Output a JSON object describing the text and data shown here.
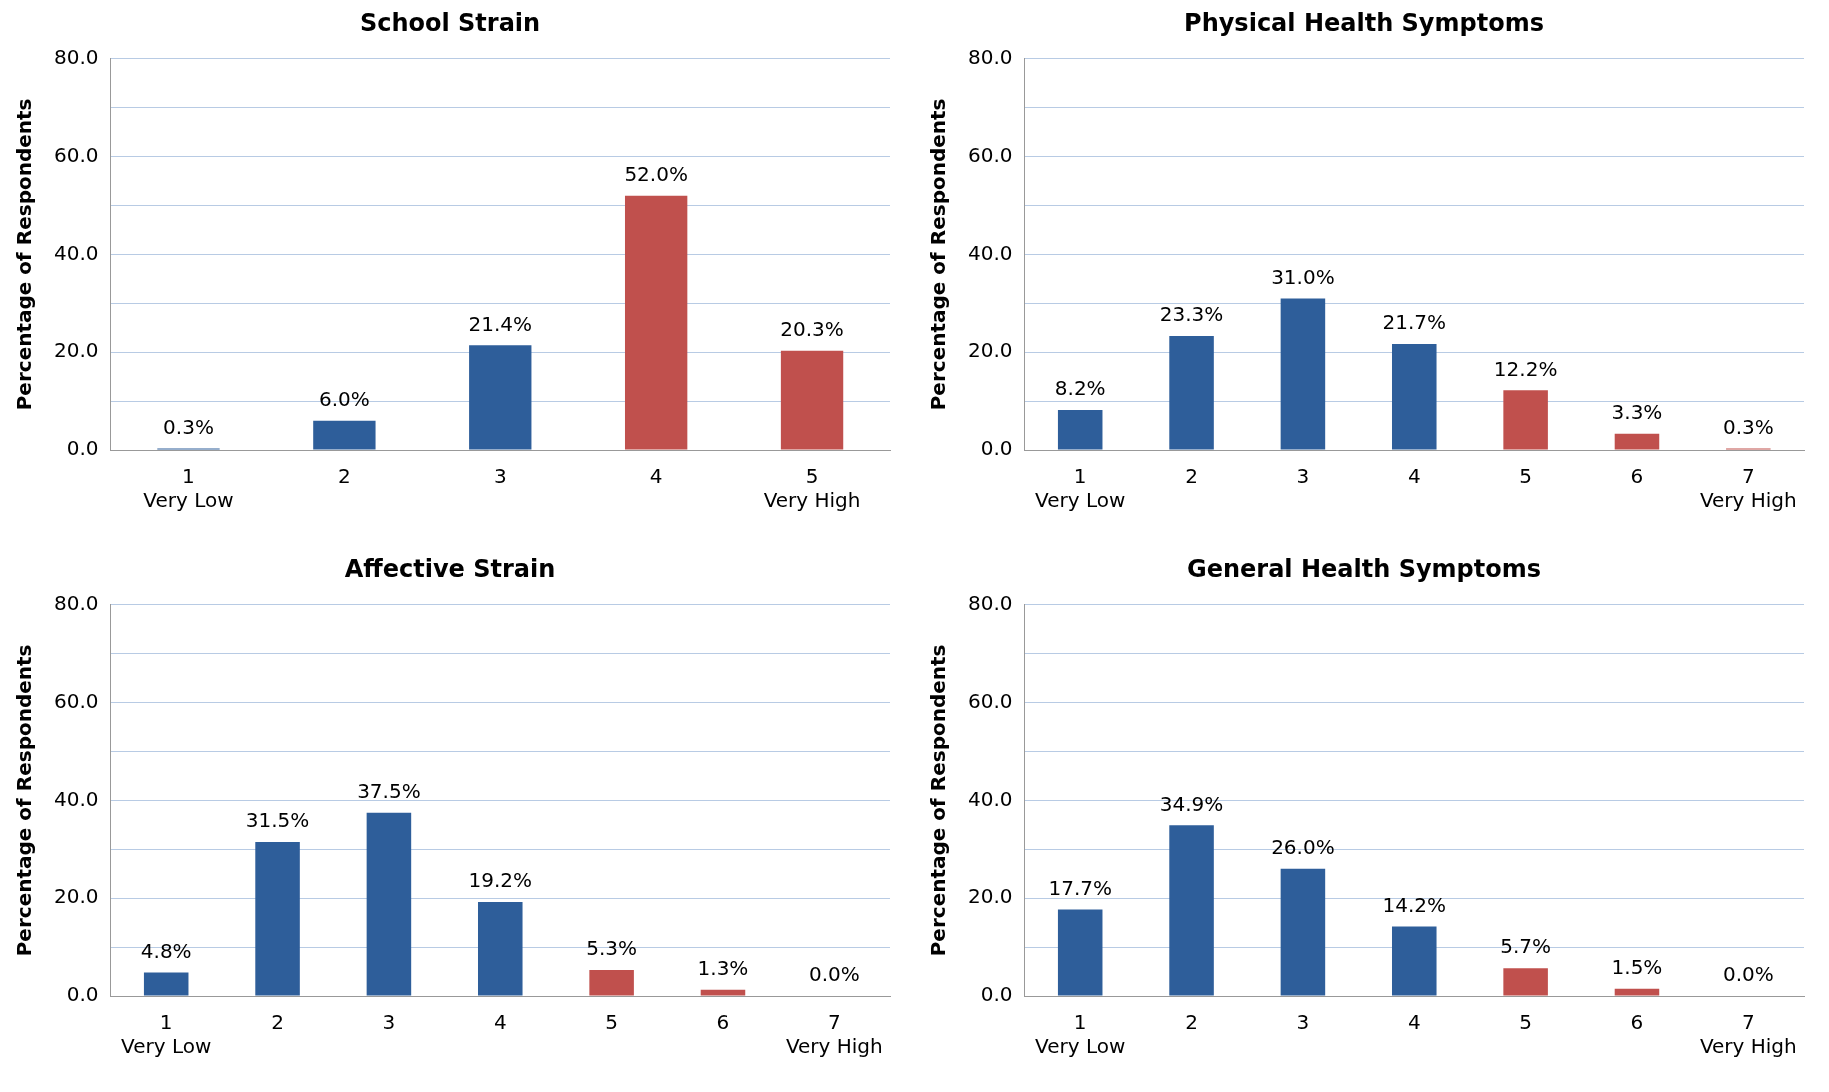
{
  "chart_data": [
    {
      "type": "bar",
      "title": "School Strain",
      "ylabel": "Percentage of Respondents",
      "categories": [
        "1\nVery Low",
        "2",
        "3",
        "4",
        "5\nVery High"
      ],
      "values": [
        0.3,
        6.0,
        21.4,
        52.0,
        20.3
      ],
      "colors": [
        "#2e5e9a",
        "#2e5e9a",
        "#2e5e9a",
        "#c0504d",
        "#c0504d"
      ],
      "value_labels": [
        "0.3%",
        "6.0%",
        "21.4%",
        "52.0%",
        "20.3%"
      ],
      "ylim": [
        0,
        80
      ],
      "yticks": [
        {
          "value": 0,
          "label": "0.0"
        },
        {
          "value": 10,
          "label": null
        },
        {
          "value": 20,
          "label": "20.0"
        },
        {
          "value": 30,
          "label": null
        },
        {
          "value": 40,
          "label": "40.0"
        },
        {
          "value": 50,
          "label": null
        },
        {
          "value": 60,
          "label": "60.0"
        },
        {
          "value": 70,
          "label": null
        },
        {
          "value": 80,
          "label": "80.0"
        }
      ],
      "grid": "y",
      "legend": false
    },
    {
      "type": "bar",
      "title": "Physical Health Symptoms",
      "ylabel": "Percentage of Respondents",
      "categories": [
        "1\nVery Low",
        "2",
        "3",
        "4",
        "5",
        "6",
        "7\nVery High"
      ],
      "values": [
        8.2,
        23.3,
        31.0,
        21.7,
        12.2,
        3.3,
        0.3
      ],
      "colors": [
        "#2e5e9a",
        "#2e5e9a",
        "#2e5e9a",
        "#2e5e9a",
        "#c0504d",
        "#c0504d",
        "#c0504d"
      ],
      "value_labels": [
        "8.2%",
        "23.3%",
        "31.0%",
        "21.7%",
        "12.2%",
        "3.3%",
        "0.3%"
      ],
      "ylim": [
        0,
        80
      ],
      "yticks": [
        {
          "value": 0,
          "label": "0.0"
        },
        {
          "value": 10,
          "label": null
        },
        {
          "value": 20,
          "label": "20.0"
        },
        {
          "value": 30,
          "label": null
        },
        {
          "value": 40,
          "label": "40.0"
        },
        {
          "value": 50,
          "label": null
        },
        {
          "value": 60,
          "label": "60.0"
        },
        {
          "value": 70,
          "label": null
        },
        {
          "value": 80,
          "label": "80.0"
        }
      ],
      "grid": "y",
      "legend": false
    },
    {
      "type": "bar",
      "title": "Affective Strain",
      "ylabel": "Percentage of Respondents",
      "categories": [
        "1\nVery Low",
        "2",
        "3",
        "4",
        "5",
        "6",
        "7\nVery High"
      ],
      "values": [
        4.8,
        31.5,
        37.5,
        19.2,
        5.3,
        1.3,
        0.0
      ],
      "colors": [
        "#2e5e9a",
        "#2e5e9a",
        "#2e5e9a",
        "#2e5e9a",
        "#c0504d",
        "#c0504d",
        "#c0504d"
      ],
      "value_labels": [
        "4.8%",
        "31.5%",
        "37.5%",
        "19.2%",
        "5.3%",
        "1.3%",
        "0.0%"
      ],
      "ylim": [
        0,
        80
      ],
      "yticks": [
        {
          "value": 0,
          "label": "0.0"
        },
        {
          "value": 10,
          "label": null
        },
        {
          "value": 20,
          "label": "20.0"
        },
        {
          "value": 30,
          "label": null
        },
        {
          "value": 40,
          "label": "40.0"
        },
        {
          "value": 50,
          "label": null
        },
        {
          "value": 60,
          "label": "60.0"
        },
        {
          "value": 70,
          "label": null
        },
        {
          "value": 80,
          "label": "80.0"
        }
      ],
      "grid": "y",
      "legend": false
    },
    {
      "type": "bar",
      "title": "General Health Symptoms",
      "ylabel": "Percentage of Respondents",
      "categories": [
        "1\nVery Low",
        "2",
        "3",
        "4",
        "5",
        "6",
        "7\nVery High"
      ],
      "values": [
        17.7,
        34.9,
        26.0,
        14.2,
        5.7,
        1.5,
        0.0
      ],
      "colors": [
        "#2e5e9a",
        "#2e5e9a",
        "#2e5e9a",
        "#2e5e9a",
        "#c0504d",
        "#c0504d",
        "#c0504d"
      ],
      "value_labels": [
        "17.7%",
        "34.9%",
        "26.0%",
        "14.2%",
        "5.7%",
        "1.5%",
        "0.0%"
      ],
      "ylim": [
        0,
        80
      ],
      "yticks": [
        {
          "value": 0,
          "label": "0.0"
        },
        {
          "value": 10,
          "label": null
        },
        {
          "value": 20,
          "label": "20.0"
        },
        {
          "value": 30,
          "label": null
        },
        {
          "value": 40,
          "label": "40.0"
        },
        {
          "value": 50,
          "label": null
        },
        {
          "value": 60,
          "label": "60.0"
        },
        {
          "value": 70,
          "label": null
        },
        {
          "value": 80,
          "label": "80.0"
        }
      ],
      "grid": "y",
      "legend": false
    }
  ]
}
